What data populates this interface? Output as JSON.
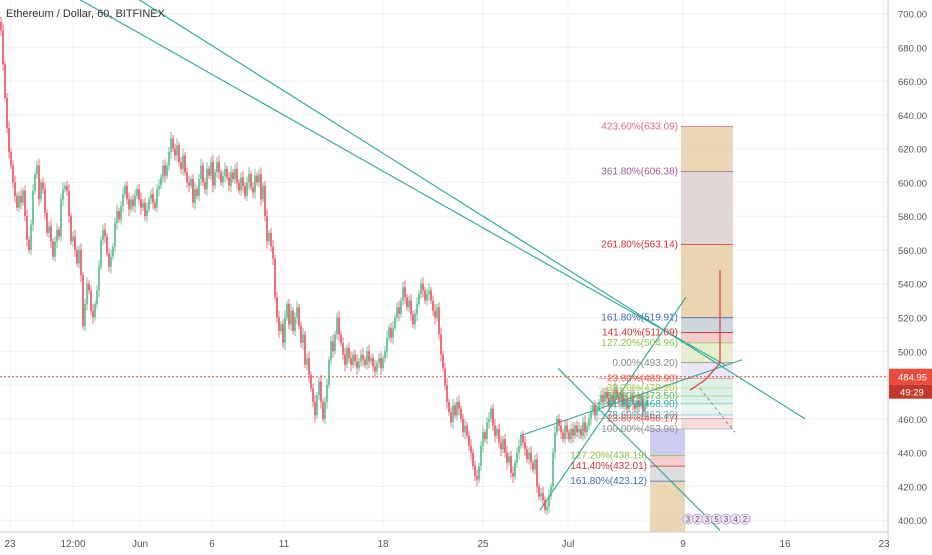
{
  "header": {
    "title": "Ethereum / Dollar, 60, BITFINEX"
  },
  "colors": {
    "up": "#53b987",
    "down": "#eb4d5c",
    "trend": "#26a69a",
    "price_line": "#e74c3c",
    "price_tag": "#e74c3c",
    "axis_text": "#555555",
    "grid": "#eef1f5"
  },
  "chart_data": {
    "type": "candlestick",
    "symbol": "Ethereum / Dollar",
    "interval": "60",
    "exchange": "BITFINEX",
    "ylim": [
      393,
      708
    ],
    "y_ticks": [
      "700.00",
      "680.00",
      "660.00",
      "640.00",
      "620.00",
      "600.00",
      "580.00",
      "560.00",
      "540.00",
      "520.00",
      "500.00",
      "480.00",
      "460.00",
      "440.00",
      "420.00",
      "400.00"
    ],
    "x_ticks": [
      "23",
      "12:00",
      "Jun",
      "6",
      "11",
      "18",
      "25",
      "Jul",
      "9",
      "16",
      "23"
    ],
    "current_price": "484.95",
    "countdown": "49:29",
    "price_path": [
      [
        0,
        695
      ],
      [
        2,
        690
      ],
      [
        4,
        670
      ],
      [
        6,
        650
      ],
      [
        8,
        632
      ],
      [
        10,
        618
      ],
      [
        12,
        610
      ],
      [
        14,
        600
      ],
      [
        16,
        592
      ],
      [
        18,
        585
      ],
      [
        20,
        592
      ],
      [
        22,
        588
      ],
      [
        24,
        595
      ],
      [
        26,
        580
      ],
      [
        28,
        566
      ],
      [
        30,
        560
      ],
      [
        32,
        575
      ],
      [
        34,
        595
      ],
      [
        36,
        605
      ],
      [
        38,
        610
      ],
      [
        40,
        590
      ],
      [
        42,
        600
      ],
      [
        44,
        596
      ],
      [
        46,
        582
      ],
      [
        48,
        570
      ],
      [
        50,
        574
      ],
      [
        52,
        565
      ],
      [
        54,
        556
      ],
      [
        56,
        565
      ],
      [
        58,
        572
      ],
      [
        60,
        568
      ],
      [
        62,
        590
      ],
      [
        64,
        596
      ],
      [
        66,
        598
      ],
      [
        68,
        595
      ],
      [
        70,
        580
      ],
      [
        72,
        565
      ],
      [
        74,
        568
      ],
      [
        76,
        560
      ],
      [
        78,
        552
      ],
      [
        80,
        560
      ],
      [
        82,
        545
      ],
      [
        84,
        515
      ],
      [
        86,
        528
      ],
      [
        88,
        540
      ],
      [
        90,
        536
      ],
      [
        92,
        524
      ],
      [
        94,
        520
      ],
      [
        96,
        528
      ],
      [
        98,
        536
      ],
      [
        100,
        550
      ],
      [
        102,
        566
      ],
      [
        104,
        572
      ],
      [
        106,
        568
      ],
      [
        108,
        558
      ],
      [
        110,
        550
      ],
      [
        112,
        556
      ],
      [
        114,
        562
      ],
      [
        116,
        576
      ],
      [
        118,
        583
      ],
      [
        120,
        578
      ],
      [
        122,
        586
      ],
      [
        124,
        593
      ],
      [
        126,
        598
      ],
      [
        128,
        590
      ],
      [
        130,
        584
      ],
      [
        132,
        590
      ],
      [
        134,
        586
      ],
      [
        136,
        592
      ],
      [
        138,
        596
      ],
      [
        140,
        590
      ],
      [
        142,
        585
      ],
      [
        144,
        588
      ],
      [
        146,
        580
      ],
      [
        148,
        584
      ],
      [
        150,
        590
      ],
      [
        152,
        593
      ],
      [
        154,
        588
      ],
      [
        156,
        585
      ],
      [
        158,
        596
      ],
      [
        160,
        598
      ],
      [
        162,
        603
      ],
      [
        164,
        610
      ],
      [
        166,
        604
      ],
      [
        168,
        610
      ],
      [
        170,
        618
      ],
      [
        172,
        626
      ],
      [
        174,
        620
      ],
      [
        176,
        616
      ],
      [
        178,
        622
      ],
      [
        180,
        612
      ],
      [
        182,
        608
      ],
      [
        184,
        616
      ],
      [
        186,
        606
      ],
      [
        188,
        600
      ],
      [
        190,
        598
      ],
      [
        192,
        602
      ],
      [
        194,
        588
      ],
      [
        196,
        596
      ],
      [
        198,
        592
      ],
      [
        200,
        602
      ],
      [
        202,
        610
      ],
      [
        204,
        600
      ],
      [
        206,
        596
      ],
      [
        208,
        608
      ],
      [
        210,
        604
      ],
      [
        212,
        612
      ],
      [
        214,
        598
      ],
      [
        216,
        606
      ],
      [
        218,
        612
      ],
      [
        220,
        606
      ],
      [
        222,
        600
      ],
      [
        224,
        604
      ],
      [
        226,
        608
      ],
      [
        228,
        603
      ],
      [
        230,
        598
      ],
      [
        232,
        606
      ],
      [
        234,
        602
      ],
      [
        236,
        608
      ],
      [
        238,
        600
      ],
      [
        240,
        595
      ],
      [
        242,
        603
      ],
      [
        244,
        598
      ],
      [
        246,
        592
      ],
      [
        248,
        600
      ],
      [
        250,
        605
      ],
      [
        252,
        597
      ],
      [
        254,
        594
      ],
      [
        256,
        604
      ],
      [
        258,
        600
      ],
      [
        260,
        605
      ],
      [
        262,
        590
      ],
      [
        264,
        598
      ],
      [
        266,
        580
      ],
      [
        268,
        565
      ],
      [
        270,
        570
      ],
      [
        272,
        562
      ],
      [
        274,
        555
      ],
      [
        276,
        532
      ],
      [
        278,
        520
      ],
      [
        280,
        512
      ],
      [
        282,
        516
      ],
      [
        284,
        505
      ],
      [
        286,
        520
      ],
      [
        288,
        528
      ],
      [
        290,
        516
      ],
      [
        292,
        524
      ],
      [
        294,
        512
      ],
      [
        296,
        520
      ],
      [
        298,
        526
      ],
      [
        300,
        515
      ],
      [
        302,
        505
      ],
      [
        304,
        510
      ],
      [
        306,
        492
      ],
      [
        308,
        496
      ],
      [
        310,
        486
      ],
      [
        312,
        478
      ],
      [
        314,
        470
      ],
      [
        316,
        462
      ],
      [
        318,
        474
      ],
      [
        320,
        482
      ],
      [
        322,
        470
      ],
      [
        324,
        460
      ],
      [
        326,
        470
      ],
      [
        328,
        480
      ],
      [
        330,
        495
      ],
      [
        332,
        506
      ],
      [
        334,
        500
      ],
      [
        336,
        510
      ],
      [
        338,
        520
      ],
      [
        340,
        510
      ],
      [
        342,
        505
      ],
      [
        344,
        498
      ],
      [
        346,
        492
      ],
      [
        348,
        502
      ],
      [
        350,
        496
      ],
      [
        352,
        492
      ],
      [
        354,
        498
      ],
      [
        356,
        494
      ],
      [
        358,
        490
      ],
      [
        360,
        494
      ],
      [
        362,
        498
      ],
      [
        364,
        495
      ],
      [
        366,
        492
      ],
      [
        368,
        500
      ],
      [
        370,
        494
      ],
      [
        372,
        496
      ],
      [
        374,
        491
      ],
      [
        376,
        488
      ],
      [
        378,
        493
      ],
      [
        380,
        496
      ],
      [
        382,
        490
      ],
      [
        384,
        496
      ],
      [
        386,
        500
      ],
      [
        388,
        508
      ],
      [
        390,
        514
      ],
      [
        392,
        508
      ],
      [
        394,
        514
      ],
      [
        396,
        520
      ],
      [
        398,
        526
      ],
      [
        400,
        522
      ],
      [
        402,
        530
      ],
      [
        404,
        538
      ],
      [
        406,
        532
      ],
      [
        408,
        526
      ],
      [
        410,
        530
      ],
      [
        412,
        522
      ],
      [
        414,
        516
      ],
      [
        416,
        522
      ],
      [
        418,
        528
      ],
      [
        420,
        534
      ],
      [
        422,
        540
      ],
      [
        424,
        536
      ],
      [
        426,
        530
      ],
      [
        428,
        534
      ],
      [
        430,
        536
      ],
      [
        432,
        530
      ],
      [
        434,
        524
      ],
      [
        436,
        520
      ],
      [
        438,
        526
      ],
      [
        440,
        510
      ],
      [
        442,
        498
      ],
      [
        444,
        490
      ],
      [
        446,
        480
      ],
      [
        448,
        470
      ],
      [
        450,
        464
      ],
      [
        452,
        458
      ],
      [
        454,
        468
      ],
      [
        456,
        462
      ],
      [
        458,
        470
      ],
      [
        460,
        466
      ],
      [
        462,
        460
      ],
      [
        464,
        452
      ],
      [
        466,
        456
      ],
      [
        468,
        450
      ],
      [
        470,
        444
      ],
      [
        472,
        440
      ],
      [
        474,
        432
      ],
      [
        476,
        426
      ],
      [
        478,
        424
      ],
      [
        480,
        432
      ],
      [
        482,
        444
      ],
      [
        484,
        452
      ],
      [
        486,
        448
      ],
      [
        488,
        458
      ],
      [
        490,
        460
      ],
      [
        492,
        466
      ],
      [
        494,
        456
      ],
      [
        496,
        450
      ],
      [
        498,
        454
      ],
      [
        500,
        446
      ],
      [
        502,
        442
      ],
      [
        504,
        448
      ],
      [
        506,
        440
      ],
      [
        508,
        434
      ],
      [
        510,
        438
      ],
      [
        512,
        428
      ],
      [
        514,
        426
      ],
      [
        516,
        434
      ],
      [
        518,
        440
      ],
      [
        520,
        444
      ],
      [
        522,
        450
      ],
      [
        524,
        446
      ],
      [
        526,
        442
      ],
      [
        528,
        436
      ],
      [
        530,
        440
      ],
      [
        532,
        434
      ],
      [
        534,
        430
      ],
      [
        536,
        436
      ],
      [
        538,
        420
      ],
      [
        540,
        414
      ],
      [
        542,
        416
      ],
      [
        544,
        412
      ],
      [
        546,
        406
      ],
      [
        548,
        408
      ],
      [
        550,
        414
      ],
      [
        552,
        420
      ],
      [
        554,
        440
      ],
      [
        556,
        452
      ],
      [
        558,
        460
      ],
      [
        560,
        456
      ],
      [
        562,
        452
      ],
      [
        564,
        448
      ],
      [
        566,
        456
      ],
      [
        568,
        452
      ],
      [
        570,
        448
      ],
      [
        572,
        454
      ],
      [
        574,
        450
      ],
      [
        576,
        456
      ],
      [
        578,
        452
      ],
      [
        580,
        454
      ],
      [
        582,
        450
      ],
      [
        584,
        458
      ],
      [
        586,
        452
      ],
      [
        588,
        456
      ],
      [
        590,
        460
      ],
      [
        592,
        464
      ],
      [
        594,
        468
      ],
      [
        596,
        462
      ],
      [
        598,
        466
      ],
      [
        600,
        470
      ],
      [
        602,
        474
      ],
      [
        604,
        470
      ],
      [
        606,
        476
      ],
      [
        608,
        472
      ],
      [
        610,
        468
      ],
      [
        612,
        474
      ],
      [
        614,
        470
      ],
      [
        616,
        478
      ],
      [
        618,
        473
      ],
      [
        620,
        470
      ],
      [
        622,
        475
      ],
      [
        624,
        468
      ],
      [
        626,
        472
      ],
      [
        628,
        466
      ],
      [
        630,
        470
      ],
      [
        632,
        474
      ],
      [
        634,
        469
      ],
      [
        636,
        466
      ],
      [
        638,
        471
      ],
      [
        640,
        468
      ],
      [
        642,
        472
      ],
      [
        644,
        464
      ],
      [
        646,
        468
      ],
      [
        648,
        471
      ]
    ],
    "trend_lines": [
      {
        "x0": 0,
        "y0": 760,
        "x1": 805,
        "y1": 460
      },
      {
        "x0": 0,
        "y0": 735,
        "x1": 725,
        "y1": 492
      },
      {
        "x0": 520,
        "y0": 450,
        "x1": 742,
        "y1": 495
      },
      {
        "x0": 558,
        "y0": 490,
        "x1": 720,
        "y1": 394
      },
      {
        "x0": 540,
        "y0": 406,
        "x1": 686,
        "y1": 532
      }
    ],
    "fib_upper": [
      {
        "label": "423.60%(633.09)",
        "price": 633.09,
        "color": "#e0678a"
      },
      {
        "label": "361.80%(606.38)",
        "price": 606.38,
        "color": "#9c5b9c"
      },
      {
        "label": "261.80%(563.14)",
        "price": 563.14,
        "color": "#d32f2f"
      },
      {
        "label": "161.80%(519.91)",
        "price": 519.91,
        "color": "#3f6cb0"
      },
      {
        "label": "141.40%(511.09)",
        "price": 511.09,
        "color": "#d32f2f"
      },
      {
        "label": "127.20%(504.96)",
        "price": 504.96,
        "color": "#8bc34a"
      },
      {
        "label": "0.00%(493.20)",
        "price": 493.2,
        "color": "#888888"
      }
    ],
    "fib_middle": [
      {
        "label": "23.60%(483.90)",
        "price": 483.9,
        "color": "#e74c3c"
      },
      {
        "label": "38.20%(478.20)",
        "price": 478.2,
        "color": "#9fbe3a"
      },
      {
        "label": "50.00%(473.50)",
        "price": 473.5,
        "color": "#4caf50"
      },
      {
        "label": "61.80%(468.90)",
        "price": 468.9,
        "color": "#26a69a"
      },
      {
        "label": "78.60%(462.30)",
        "price": 462.3,
        "color": "#3f9cb0"
      },
      {
        "label": "23.60%(460.17)",
        "price": 460.17,
        "color": "#e74c3c"
      },
      {
        "label": "100.00%(453.96)",
        "price": 453.96,
        "color": "#888888"
      }
    ],
    "fib_lower": [
      {
        "label": "127.20%(438.19)",
        "price": 438.19,
        "color": "#8bc34a"
      },
      {
        "label": "141.40%(432.01)",
        "price": 432.01,
        "color": "#d32f2f"
      },
      {
        "label": "161.80%(423.12)",
        "price": 423.12,
        "color": "#3f6cb0"
      }
    ],
    "event_marks": [
      "3",
      "2",
      "3",
      "5",
      "3",
      "4",
      "2"
    ]
  }
}
